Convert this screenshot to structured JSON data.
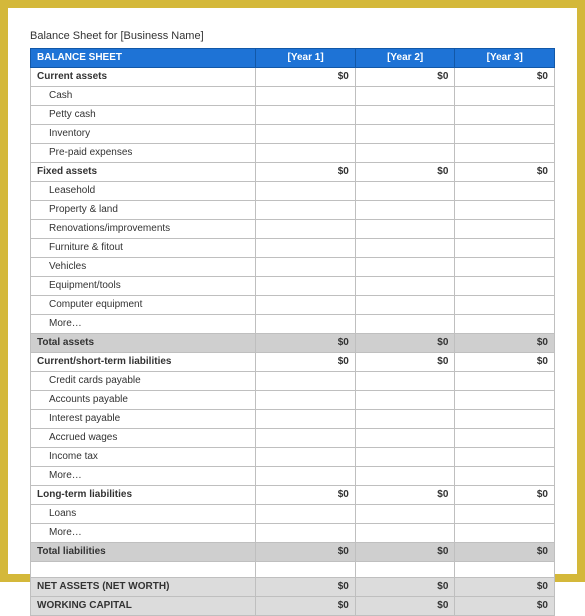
{
  "frame_border_color": "#d4b83a",
  "header_bg": "#1e73d6",
  "header_text": "#ffffff",
  "cell_border": "#bfbfbf",
  "shaded_bg": "#cfcfcf",
  "net_bg": "#dcdcdc",
  "title": "Balance Sheet for [Business Name]",
  "header": {
    "label": "BALANCE SHEET",
    "cols": [
      "[Year 1]",
      "[Year 2]",
      "[Year 3]"
    ]
  },
  "rows": [
    {
      "kind": "section",
      "label": "Current assets",
      "vals": [
        "$0",
        "$0",
        "$0"
      ]
    },
    {
      "kind": "item",
      "label": "Cash",
      "vals": [
        "",
        "",
        ""
      ]
    },
    {
      "kind": "item",
      "label": "Petty cash",
      "vals": [
        "",
        "",
        ""
      ]
    },
    {
      "kind": "item",
      "label": "Inventory",
      "vals": [
        "",
        "",
        ""
      ]
    },
    {
      "kind": "item",
      "label": "Pre-paid expenses",
      "vals": [
        "",
        "",
        ""
      ]
    },
    {
      "kind": "section",
      "label": "Fixed assets",
      "vals": [
        "$0",
        "$0",
        "$0"
      ]
    },
    {
      "kind": "item",
      "label": "Leasehold",
      "vals": [
        "",
        "",
        ""
      ]
    },
    {
      "kind": "item",
      "label": "Property & land",
      "vals": [
        "",
        "",
        ""
      ]
    },
    {
      "kind": "item",
      "label": "Renovations/improvements",
      "vals": [
        "",
        "",
        ""
      ]
    },
    {
      "kind": "item",
      "label": "Furniture & fitout",
      "vals": [
        "",
        "",
        ""
      ]
    },
    {
      "kind": "item",
      "label": "Vehicles",
      "vals": [
        "",
        "",
        ""
      ]
    },
    {
      "kind": "item",
      "label": "Equipment/tools",
      "vals": [
        "",
        "",
        ""
      ]
    },
    {
      "kind": "item",
      "label": "Computer equipment",
      "vals": [
        "",
        "",
        ""
      ]
    },
    {
      "kind": "item",
      "label": "More…",
      "vals": [
        "",
        "",
        ""
      ]
    },
    {
      "kind": "total",
      "label": "Total assets",
      "vals": [
        "$0",
        "$0",
        "$0"
      ]
    },
    {
      "kind": "section",
      "label": "Current/short-term liabilities",
      "vals": [
        "$0",
        "$0",
        "$0"
      ]
    },
    {
      "kind": "item",
      "label": "Credit cards payable",
      "vals": [
        "",
        "",
        ""
      ]
    },
    {
      "kind": "item",
      "label": "Accounts payable",
      "vals": [
        "",
        "",
        ""
      ]
    },
    {
      "kind": "item",
      "label": "Interest payable",
      "vals": [
        "",
        "",
        ""
      ]
    },
    {
      "kind": "item",
      "label": "Accrued wages",
      "vals": [
        "",
        "",
        ""
      ]
    },
    {
      "kind": "item",
      "label": "Income tax",
      "vals": [
        "",
        "",
        ""
      ]
    },
    {
      "kind": "item",
      "label": "More…",
      "vals": [
        "",
        "",
        ""
      ]
    },
    {
      "kind": "section",
      "label": "Long-term liabilities",
      "vals": [
        "$0",
        "$0",
        "$0"
      ]
    },
    {
      "kind": "item",
      "label": "Loans",
      "vals": [
        "",
        "",
        ""
      ]
    },
    {
      "kind": "item",
      "label": "More…",
      "vals": [
        "",
        "",
        ""
      ]
    },
    {
      "kind": "total",
      "label": "Total liabilities",
      "vals": [
        "$0",
        "$0",
        "$0"
      ]
    },
    {
      "kind": "blank",
      "label": "",
      "vals": [
        "",
        "",
        ""
      ]
    },
    {
      "kind": "net",
      "label": "NET ASSETS (NET WORTH)",
      "vals": [
        "$0",
        "$0",
        "$0"
      ]
    },
    {
      "kind": "net",
      "label": "WORKING CAPITAL",
      "vals": [
        "$0",
        "$0",
        "$0"
      ]
    }
  ],
  "watermark": ""
}
